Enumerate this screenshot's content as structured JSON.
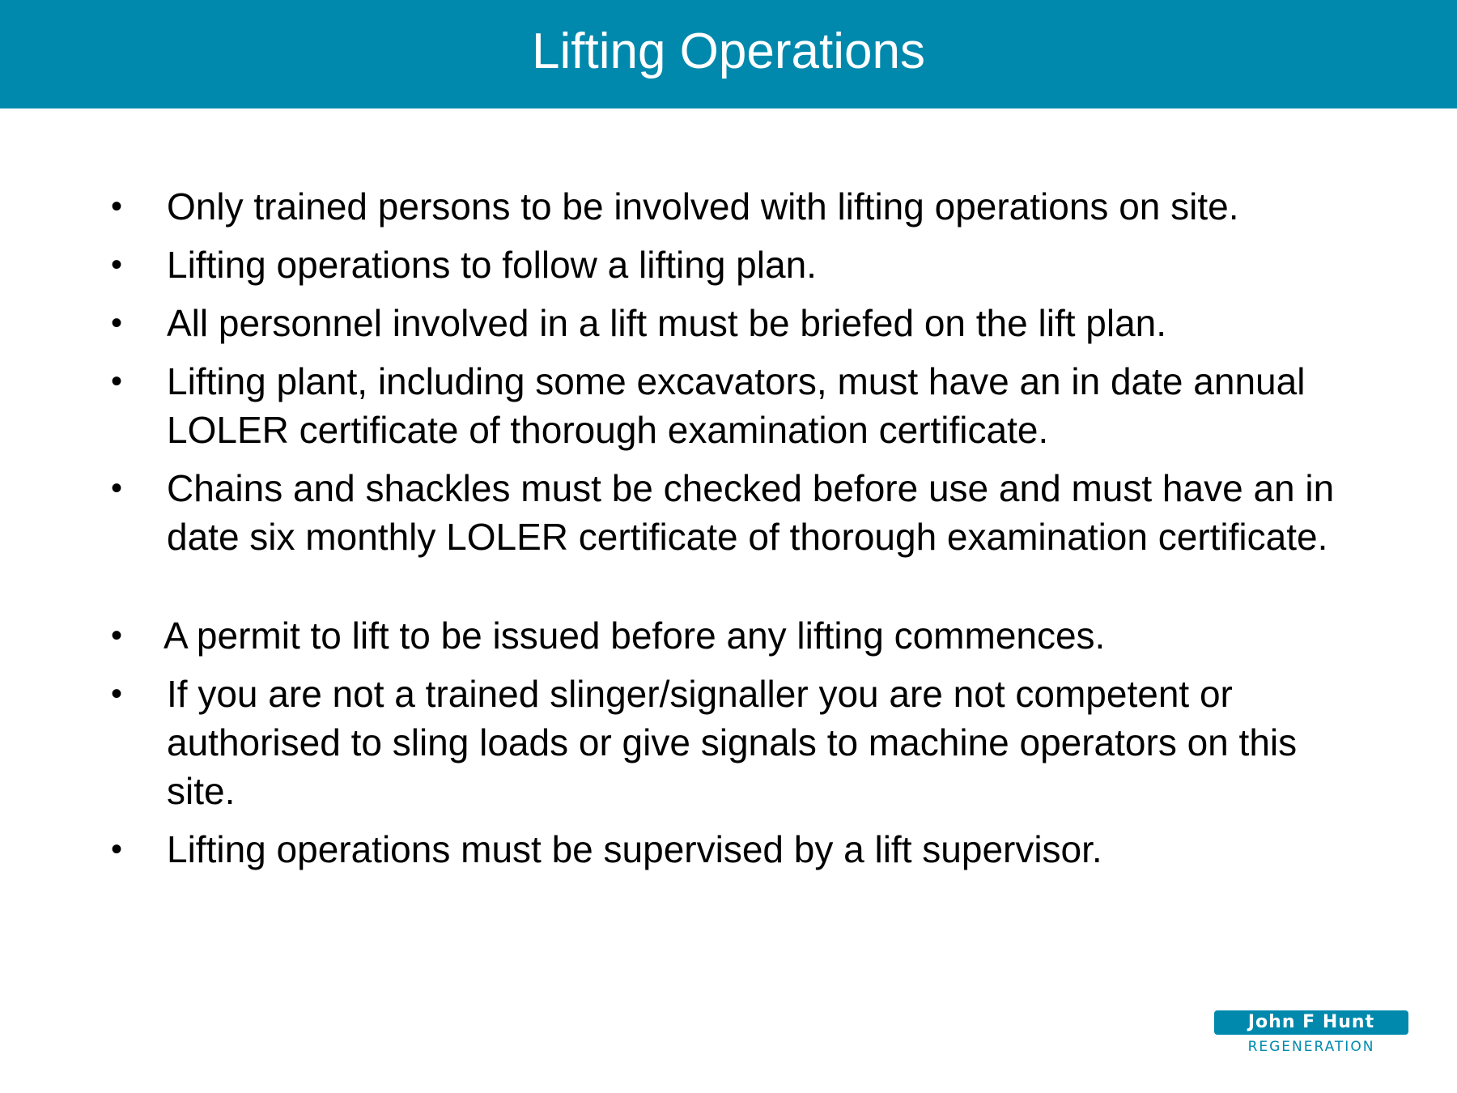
{
  "slide": {
    "title": "Lifting Operations",
    "bullet_symbol": "•",
    "bullets": [
      "Only trained persons to be involved with lifting operations on site.",
      "Lifting operations to follow a lifting plan.",
      "All personnel involved in a lift must be briefed on the lift plan.",
      "Lifting plant, including some excavators, must have an in date annual LOLER certificate of thorough examination certificate.",
      "Chains and shackles must be checked before use and must have an in date six monthly LOLER certificate of thorough examination certificate.",
      "A permit to lift to be issued before any lifting commences.",
      "If you are not a trained slinger/signaller you are not competent or authorised to sling loads or give signals to machine operators on this site.",
      "Lifting operations must be supervised by a lift supervisor."
    ]
  },
  "logo": {
    "name": "John F Hunt",
    "subtitle": "REGENERATION"
  },
  "colors": {
    "title_bar": "#0089ad",
    "title_text": "#ffffff",
    "body_text": "#000000",
    "logo": "#0089ad"
  }
}
